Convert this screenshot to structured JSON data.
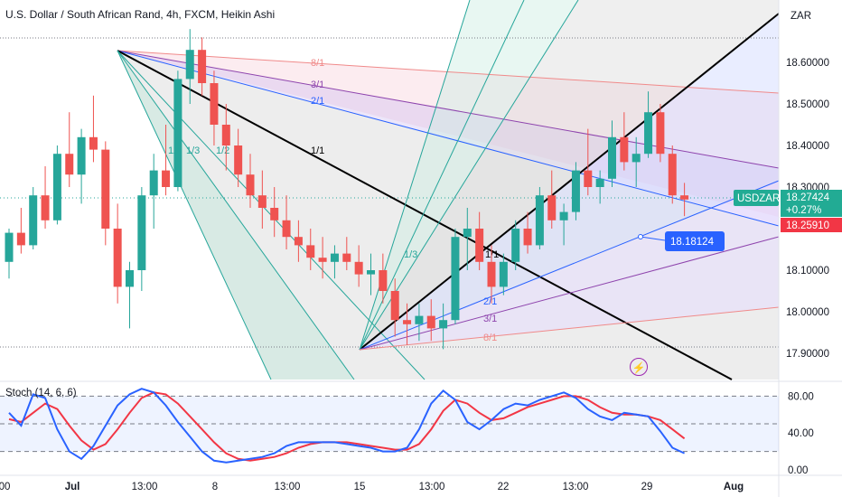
{
  "header": {
    "title": "U.S. Dollar / South African Rand, 4h, FXCM, Heikin Ashi",
    "currency": "ZAR"
  },
  "price_badge": {
    "symbol": "USDZAR",
    "price": "18.27424",
    "change": "+0.27%",
    "secondary": "18.25910",
    "tool_price": "18.18124"
  },
  "stoch": {
    "label": "Stoch (14, 6, 6)"
  },
  "colors": {
    "up": "#26a69a",
    "down": "#ef5350",
    "k_line": "#2962ff",
    "d_line": "#f23645",
    "badge_green": "#22ab94",
    "badge_red": "#f23645",
    "badge_blue": "#2962ff"
  },
  "chart_data": {
    "type": "candlestick",
    "price_axis": {
      "ticks": [
        "18.60000",
        "18.50000",
        "18.40000",
        "18.30000",
        "18.10000",
        "18.00000",
        "17.90000"
      ],
      "values": [
        18.6,
        18.5,
        18.4,
        18.3,
        18.1,
        18.0,
        17.9
      ]
    },
    "time_axis": {
      "ticks": [
        "00",
        "Jul",
        "13:00",
        "8",
        "13:00",
        "15",
        "13:00",
        "22",
        "13:00",
        "29",
        "Aug"
      ]
    },
    "fan_labels": [
      "8/1",
      "3/1",
      "2/1",
      "1/1",
      "1/2",
      "1/3",
      "1/4",
      "1/1",
      "1/3",
      "2/1",
      "3/1",
      "8/1"
    ],
    "stoch_axis": {
      "ticks": [
        "80.00",
        "40.00",
        "0.00"
      ],
      "values": [
        80,
        40,
        0
      ]
    },
    "candles": [
      [
        18.12,
        18.2,
        18.08,
        18.19
      ],
      [
        18.19,
        18.25,
        18.14,
        18.16
      ],
      [
        18.16,
        18.3,
        18.15,
        18.28
      ],
      [
        18.28,
        18.35,
        18.2,
        18.22
      ],
      [
        18.22,
        18.4,
        18.21,
        18.38
      ],
      [
        18.38,
        18.48,
        18.3,
        18.33
      ],
      [
        18.33,
        18.44,
        18.26,
        18.42
      ],
      [
        18.42,
        18.52,
        18.36,
        18.39
      ],
      [
        18.39,
        18.41,
        18.16,
        18.2
      ],
      [
        18.2,
        18.26,
        18.02,
        18.06
      ],
      [
        18.06,
        18.12,
        17.96,
        18.1
      ],
      [
        18.1,
        18.3,
        18.05,
        18.28
      ],
      [
        18.28,
        18.38,
        18.2,
        18.34
      ],
      [
        18.34,
        18.45,
        18.28,
        18.3
      ],
      [
        18.3,
        18.58,
        18.29,
        18.56
      ],
      [
        18.56,
        18.68,
        18.5,
        18.63
      ],
      [
        18.63,
        18.66,
        18.52,
        18.55
      ],
      [
        18.55,
        18.58,
        18.4,
        18.45
      ],
      [
        18.45,
        18.5,
        18.34,
        18.4
      ],
      [
        18.4,
        18.44,
        18.3,
        18.33
      ],
      [
        18.33,
        18.38,
        18.25,
        18.28
      ],
      [
        18.28,
        18.34,
        18.2,
        18.25
      ],
      [
        18.25,
        18.3,
        18.18,
        18.22
      ],
      [
        18.22,
        18.28,
        18.15,
        18.18
      ],
      [
        18.18,
        18.22,
        18.12,
        18.16
      ],
      [
        18.16,
        18.2,
        18.1,
        18.13
      ],
      [
        18.13,
        18.18,
        18.08,
        18.12
      ],
      [
        18.12,
        18.16,
        18.08,
        18.14
      ],
      [
        18.14,
        18.18,
        18.1,
        18.12
      ],
      [
        18.12,
        18.16,
        18.06,
        18.09
      ],
      [
        18.09,
        18.14,
        18.04,
        18.1
      ],
      [
        18.1,
        18.14,
        18.02,
        18.05
      ],
      [
        18.05,
        18.08,
        17.94,
        17.98
      ],
      [
        17.98,
        18.02,
        17.92,
        17.97
      ],
      [
        17.97,
        18.02,
        17.93,
        17.99
      ],
      [
        17.99,
        18.03,
        17.93,
        17.96
      ],
      [
        17.96,
        18.02,
        17.91,
        17.98
      ],
      [
        17.98,
        18.2,
        17.97,
        18.18
      ],
      [
        18.18,
        18.25,
        18.1,
        18.2
      ],
      [
        18.2,
        18.24,
        18.1,
        18.12
      ],
      [
        18.12,
        18.16,
        18.02,
        18.06
      ],
      [
        18.06,
        18.14,
        18.04,
        18.12
      ],
      [
        18.12,
        18.22,
        18.1,
        18.2
      ],
      [
        18.2,
        18.24,
        18.14,
        18.16
      ],
      [
        18.16,
        18.3,
        18.15,
        18.28
      ],
      [
        18.28,
        18.34,
        18.2,
        18.22
      ],
      [
        18.22,
        18.26,
        18.16,
        18.24
      ],
      [
        18.24,
        18.36,
        18.22,
        18.34
      ],
      [
        18.34,
        18.44,
        18.28,
        18.3
      ],
      [
        18.3,
        18.34,
        18.26,
        18.32
      ],
      [
        18.32,
        18.46,
        18.3,
        18.42
      ],
      [
        18.42,
        18.48,
        18.34,
        18.36
      ],
      [
        18.36,
        18.42,
        18.3,
        18.38
      ],
      [
        18.38,
        18.53,
        18.37,
        18.48
      ],
      [
        18.48,
        18.5,
        18.36,
        18.38
      ],
      [
        18.38,
        18.4,
        18.26,
        18.28
      ],
      [
        18.28,
        18.31,
        18.23,
        18.27
      ]
    ],
    "stoch_k": [
      62,
      48,
      82,
      78,
      44,
      20,
      12,
      26,
      48,
      70,
      82,
      88,
      84,
      70,
      52,
      36,
      20,
      10,
      8,
      10,
      12,
      14,
      18,
      26,
      30,
      30,
      30,
      30,
      28,
      26,
      24,
      20,
      20,
      24,
      44,
      72,
      86,
      76,
      52,
      44,
      54,
      66,
      72,
      70,
      76,
      80,
      84,
      78,
      66,
      58,
      54,
      62,
      60,
      58,
      42,
      24,
      18
    ],
    "stoch_d": [
      55,
      52,
      62,
      72,
      66,
      48,
      32,
      22,
      28,
      44,
      62,
      78,
      84,
      82,
      72,
      58,
      44,
      30,
      18,
      12,
      10,
      12,
      14,
      18,
      24,
      28,
      30,
      30,
      30,
      28,
      26,
      24,
      22,
      22,
      28,
      44,
      64,
      76,
      72,
      62,
      54,
      56,
      62,
      68,
      72,
      76,
      80,
      80,
      76,
      68,
      62,
      60,
      60,
      58,
      54,
      44,
      34
    ]
  }
}
